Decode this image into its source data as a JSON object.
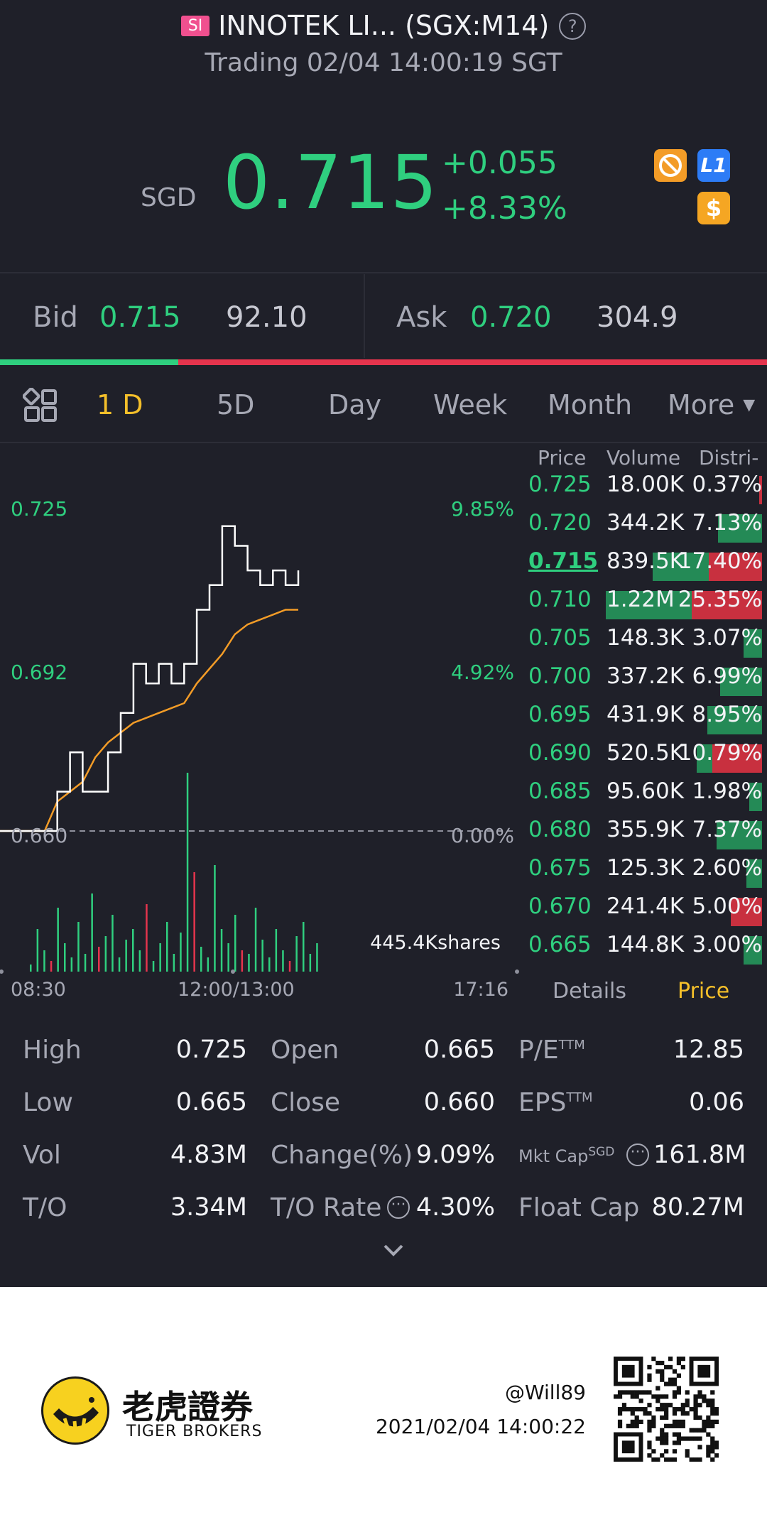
{
  "header": {
    "badge": "SI",
    "title": "INNOTEK LI... (SGX:M14)",
    "help": "?",
    "status": "Trading 02/04 14:00:19 SGT"
  },
  "quote": {
    "currency": "SGD",
    "price": "0.715",
    "change": "+0.055",
    "change_pct": "+8.33%",
    "icons": [
      "no-shorting-icon",
      "level1-icon",
      "dollar-icon"
    ],
    "l1_label": "L1",
    "dollar_label": "$"
  },
  "bidask": {
    "bid_label": "Bid",
    "bid_price": "0.715",
    "bid_size": "92.10",
    "ask_label": "Ask",
    "ask_price": "0.720",
    "ask_size": "304.9",
    "bid_ratio": 0.232
  },
  "tabs": {
    "items": [
      "1 D",
      "5D",
      "Day",
      "Week",
      "Month",
      "More"
    ],
    "active": 0
  },
  "chart": {
    "y_top": "0.725",
    "y_mid": "0.692",
    "y_base": "0.660",
    "pct_top": "9.85%",
    "pct_mid": "4.92%",
    "pct_base": "0.00%",
    "volume_label": "445.4Kshares",
    "x_start": "08:30",
    "x_mid": "12:00/13:00",
    "x_end": "17:16"
  },
  "chart_data": {
    "type": "line",
    "title": "",
    "xlabel": "",
    "ylabel": "",
    "ylim": [
      0.66,
      0.725
    ],
    "series": [
      {
        "values": [
          0.66,
          0.66,
          0.668,
          0.676,
          0.668,
          0.668,
          0.676,
          0.684,
          0.694,
          0.69,
          0.694,
          0.69,
          0.694,
          0.705,
          0.71,
          0.722,
          0.718,
          0.713,
          0.71,
          0.713,
          0.71,
          0.713
        ]
      },
      {
        "values": [
          0.66,
          0.66,
          0.666,
          0.668,
          0.67,
          0.675,
          0.678,
          0.68,
          0.682,
          0.683,
          0.684,
          0.685,
          0.686,
          0.69,
          0.693,
          0.696,
          0.7,
          0.702,
          0.703,
          0.704,
          0.705,
          0.705
        ]
      }
    ]
  },
  "orderbook": {
    "headers": [
      "Price",
      "Volume",
      "Distri-"
    ],
    "rows": [
      {
        "price": "0.725",
        "volume": "18.00K",
        "dist": "0.37%",
        "buy": 0.0,
        "sell": 0.02
      },
      {
        "price": "0.720",
        "volume": "344.2K",
        "dist": "7.13%",
        "buy": 0.28,
        "sell": 0.0
      },
      {
        "price": "0.715",
        "volume": "839.5K",
        "dist": "17.40%",
        "buy": 0.36,
        "sell": 0.34
      },
      {
        "price": "0.710",
        "volume": "1.22M",
        "dist": "25.35%",
        "buy": 0.55,
        "sell": 0.45
      },
      {
        "price": "0.705",
        "volume": "148.3K",
        "dist": "3.07%",
        "buy": 0.12,
        "sell": 0.0
      },
      {
        "price": "0.700",
        "volume": "337.2K",
        "dist": "6.99%",
        "buy": 0.27,
        "sell": 0.0
      },
      {
        "price": "0.695",
        "volume": "431.9K",
        "dist": "8.95%",
        "buy": 0.35,
        "sell": 0.0
      },
      {
        "price": "0.690",
        "volume": "520.5K",
        "dist": "10.79%",
        "buy": 0.1,
        "sell": 0.32
      },
      {
        "price": "0.685",
        "volume": "95.60K",
        "dist": "1.98%",
        "buy": 0.08,
        "sell": 0.0
      },
      {
        "price": "0.680",
        "volume": "355.9K",
        "dist": "7.37%",
        "buy": 0.29,
        "sell": 0.0
      },
      {
        "price": "0.675",
        "volume": "125.3K",
        "dist": "2.60%",
        "buy": 0.1,
        "sell": 0.0
      },
      {
        "price": "0.670",
        "volume": "241.4K",
        "dist": "5.00%",
        "buy": 0.0,
        "sell": 0.2
      },
      {
        "price": "0.665",
        "volume": "144.8K",
        "dist": "3.00%",
        "buy": 0.12,
        "sell": 0.0
      }
    ],
    "current_price": "0.715"
  },
  "subtabs": {
    "details": "Details",
    "price": "Price"
  },
  "stats": {
    "high_l": "High",
    "high_v": "0.725",
    "low_l": "Low",
    "low_v": "0.665",
    "vol_l": "Vol",
    "vol_v": "4.83M",
    "to_l": "T/O",
    "to_v": "3.34M",
    "open_l": "Open",
    "open_v": "0.665",
    "close_l": "Close",
    "close_v": "0.660",
    "chg_l": "Change(%)",
    "chg_v": "9.09%",
    "tor_l": "T/O Rate",
    "tor_v": "4.30%",
    "pe_l": "P/E",
    "pe_sup": "TTM",
    "pe_v": "12.85",
    "eps_l": "EPS",
    "eps_sup": "TTM",
    "eps_v": "0.06",
    "mc_l": "Mkt Cap",
    "mc_sup": "SGD",
    "mc_v": "161.8M",
    "fc_l": "Float Cap",
    "fc_v": "80.27M"
  },
  "footer": {
    "brand_cn": "老虎證券",
    "brand_en": "TIGER BROKERS",
    "user": "@Will89",
    "timestamp": "2021/02/04 14:00:22"
  },
  "colors": {
    "green": "#2fcf7f",
    "red": "#e5344d",
    "accent": "#f4bf2a"
  }
}
